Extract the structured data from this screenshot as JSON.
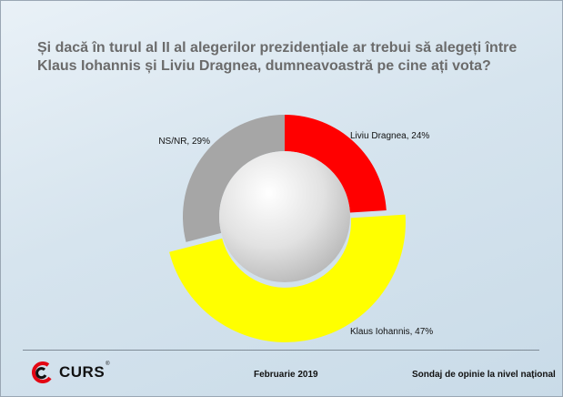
{
  "chart_data": {
    "type": "pie",
    "title_lines": [
      "Și dacă în turul al II al alegerilor prezidențiale ar trebui să alegeți între",
      "Klaus Iohannis și Liviu Dragnea, dumneavoastră pe cine ați vota?"
    ],
    "slices": [
      {
        "name": "Liviu Dragnea",
        "value": 24,
        "label": "Liviu Dragnea, 24%",
        "color": "#ff0000"
      },
      {
        "name": "Klaus Iohannis",
        "value": 47,
        "label": "Klaus Iohannis, 47%",
        "color": "#ffff00"
      },
      {
        "name": "NS/NR",
        "value": 29,
        "label": "NS/NR, 29%",
        "color": "#a6a6a6"
      }
    ],
    "exploded": "Klaus Iohannis",
    "legend": "none"
  },
  "footer": {
    "logo_text": "CURS",
    "registered_mark": "®",
    "date": "Februarie 2019",
    "source": "Sondaj de opinie la nivel național"
  }
}
